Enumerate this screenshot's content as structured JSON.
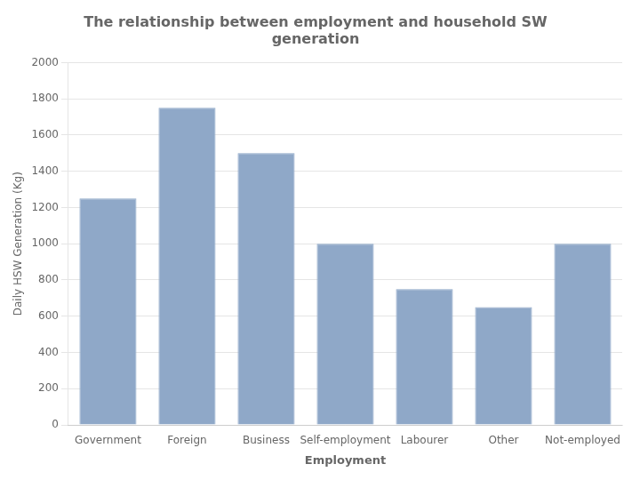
{
  "chart_data": {
    "type": "bar",
    "title": "The relationship between employment and household SW\ngeneration",
    "categories": [
      "Government",
      "Foreign",
      "Business",
      "Self-employment",
      "Labourer",
      "Other",
      "Not-employed"
    ],
    "values": [
      1250,
      1750,
      1500,
      1000,
      750,
      650,
      1000
    ],
    "color": "#8fa8c8",
    "xlabel": "Employment",
    "ylabel": "Daily HSW Generation (Kg)",
    "ylim": [
      0,
      2000
    ],
    "yticks": [
      0,
      200,
      400,
      600,
      800,
      1000,
      1200,
      1400,
      1600,
      1800,
      2000
    ],
    "grid": true
  }
}
